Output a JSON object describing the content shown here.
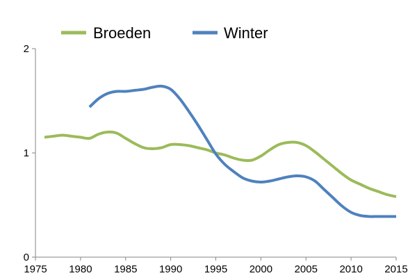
{
  "chart_data": {
    "type": "line",
    "xlim": [
      1975,
      2015
    ],
    "ylim": [
      0,
      2
    ],
    "x_ticks": [
      "1975",
      "1980",
      "1985",
      "1990",
      "1995",
      "2000",
      "2005",
      "2010",
      "2015"
    ],
    "y_ticks": [
      "0",
      "1",
      "2"
    ],
    "grid": false,
    "legend_position": "top",
    "series": [
      {
        "name": "Broeden",
        "color": "#9BBB59",
        "x": [
          1976,
          1977,
          1978,
          1979,
          1980,
          1981,
          1982,
          1983,
          1984,
          1985,
          1986,
          1987,
          1988,
          1989,
          1990,
          1991,
          1992,
          1993,
          1994,
          1995,
          1996,
          1997,
          1998,
          1999,
          2000,
          2001,
          2002,
          2003,
          2004,
          2005,
          2006,
          2007,
          2008,
          2009,
          2010,
          2011,
          2012,
          2013,
          2014,
          2015
        ],
        "values": [
          1.15,
          1.16,
          1.17,
          1.16,
          1.15,
          1.14,
          1.18,
          1.2,
          1.19,
          1.14,
          1.09,
          1.05,
          1.04,
          1.05,
          1.08,
          1.08,
          1.07,
          1.05,
          1.03,
          1.0,
          0.98,
          0.95,
          0.93,
          0.93,
          0.97,
          1.03,
          1.08,
          1.1,
          1.1,
          1.07,
          1.01,
          0.94,
          0.87,
          0.8,
          0.74,
          0.7,
          0.66,
          0.63,
          0.6,
          0.58
        ]
      },
      {
        "name": "Winter",
        "color": "#4F81BD",
        "x": [
          1981,
          1982,
          1983,
          1984,
          1985,
          1986,
          1987,
          1988,
          1989,
          1990,
          1991,
          1992,
          1993,
          1994,
          1995,
          1996,
          1997,
          1998,
          1999,
          2000,
          2001,
          2002,
          2003,
          2004,
          2005,
          2006,
          2007,
          2008,
          2009,
          2010,
          2011,
          2012,
          2013,
          2014,
          2015
        ],
        "values": [
          1.44,
          1.52,
          1.57,
          1.59,
          1.59,
          1.6,
          1.61,
          1.63,
          1.64,
          1.61,
          1.52,
          1.4,
          1.27,
          1.13,
          0.99,
          0.89,
          0.82,
          0.76,
          0.73,
          0.72,
          0.73,
          0.75,
          0.77,
          0.78,
          0.77,
          0.73,
          0.65,
          0.57,
          0.49,
          0.43,
          0.4,
          0.39,
          0.39,
          0.39,
          0.39
        ]
      }
    ]
  }
}
